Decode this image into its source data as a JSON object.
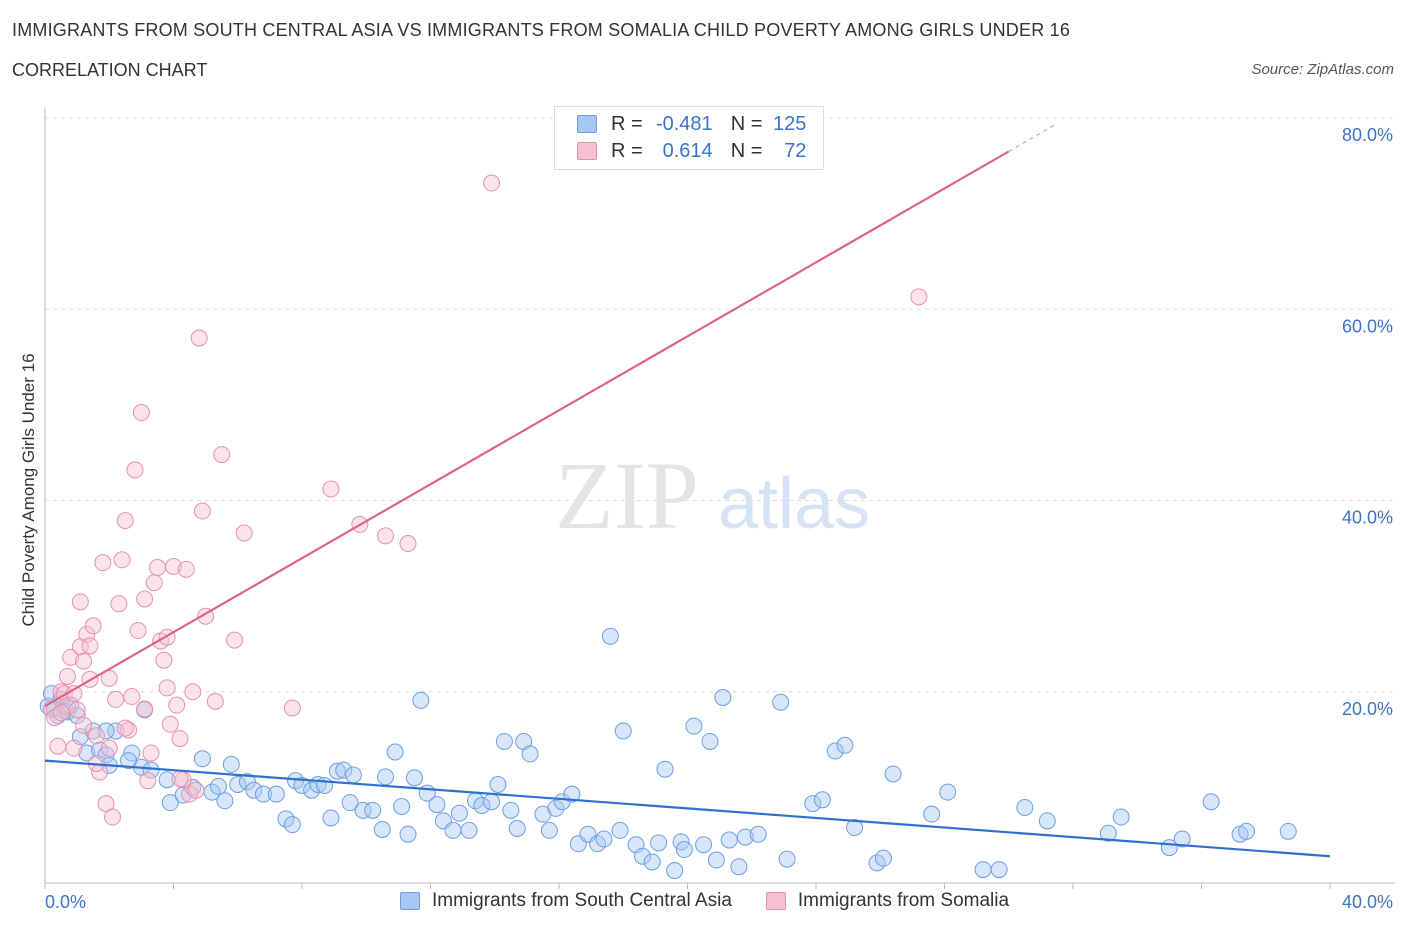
{
  "header": {
    "title": "IMMIGRANTS FROM SOUTH CENTRAL ASIA VS IMMIGRANTS FROM SOMALIA CHILD POVERTY AMONG GIRLS UNDER 16",
    "subtitle": "CORRELATION CHART",
    "source": "Source: ZipAtlas.com"
  },
  "legend": {
    "r_label": "R =",
    "n_label": "N =",
    "series1": {
      "r": "-0.481",
      "n": "125"
    },
    "series2": {
      "r": "0.614",
      "n": "72"
    }
  },
  "watermark": {
    "part1": "ZIP",
    "part2": "atlas"
  },
  "chart_data": {
    "type": "scatter",
    "title": "IMMIGRANTS FROM SOUTH CENTRAL ASIA VS IMMIGRANTS FROM SOMALIA CHILD POVERTY AMONG GIRLS UNDER 16",
    "ylabel": "Child Poverty Among Girls Under 16",
    "xlim": [
      0,
      40
    ],
    "ylim": [
      0,
      80
    ],
    "x_tick_labels": [
      "0.0%",
      "40.0%"
    ],
    "y_ticks": [
      20,
      40,
      60,
      80
    ],
    "y_tick_labels": [
      "20.0%",
      "40.0%",
      "60.0%",
      "80.0%"
    ],
    "grid": true,
    "legend_position": "top-center",
    "colors": {
      "series1": "#6d9fe0",
      "series2": "#e891ad",
      "trend1": "#2f6fd0",
      "trend2": "#e0628c",
      "axis_text": "#3b73c9"
    },
    "series": [
      {
        "name": "Immigrants from South Central Asia",
        "r": -0.481,
        "n": 125,
        "trend": {
          "x": [
            0,
            40
          ],
          "y": [
            12.8,
            2.8
          ]
        },
        "points": [
          [
            0.1,
            18.5
          ],
          [
            0.2,
            19.8
          ],
          [
            0.3,
            18.2
          ],
          [
            0.4,
            17.5
          ],
          [
            0.5,
            19.2
          ],
          [
            0.6,
            18.0
          ],
          [
            0.7,
            17.9
          ],
          [
            0.8,
            18.6
          ],
          [
            1.0,
            17.5
          ],
          [
            1.1,
            15.3
          ],
          [
            1.3,
            13.6
          ],
          [
            1.5,
            15.9
          ],
          [
            1.7,
            13.9
          ],
          [
            1.9,
            13.4
          ],
          [
            2.0,
            12.3
          ],
          [
            2.2,
            15.9
          ],
          [
            2.7,
            13.6
          ],
          [
            3.0,
            12.1
          ],
          [
            3.1,
            18.1
          ],
          [
            3.3,
            11.8
          ],
          [
            3.8,
            10.8
          ],
          [
            3.9,
            8.4
          ],
          [
            4.3,
            9.2
          ],
          [
            4.6,
            10.0
          ],
          [
            4.9,
            13.0
          ],
          [
            5.2,
            9.5
          ],
          [
            5.4,
            10.1
          ],
          [
            5.6,
            8.6
          ],
          [
            5.8,
            12.4
          ],
          [
            6.0,
            10.3
          ],
          [
            6.3,
            10.6
          ],
          [
            6.5,
            9.7
          ],
          [
            6.8,
            9.3
          ],
          [
            7.2,
            9.3
          ],
          [
            7.5,
            6.7
          ],
          [
            7.7,
            6.1
          ],
          [
            7.8,
            10.7
          ],
          [
            8.0,
            10.2
          ],
          [
            8.3,
            9.7
          ],
          [
            8.5,
            10.3
          ],
          [
            8.7,
            10.2
          ],
          [
            8.9,
            6.8
          ],
          [
            9.1,
            11.7
          ],
          [
            9.3,
            11.8
          ],
          [
            9.5,
            8.4
          ],
          [
            9.6,
            11.3
          ],
          [
            9.9,
            7.6
          ],
          [
            10.2,
            7.6
          ],
          [
            10.5,
            5.6
          ],
          [
            10.6,
            11.1
          ],
          [
            10.9,
            13.7
          ],
          [
            11.1,
            8.0
          ],
          [
            11.3,
            5.1
          ],
          [
            11.5,
            11.0
          ],
          [
            11.7,
            19.1
          ],
          [
            11.9,
            9.4
          ],
          [
            12.2,
            8.2
          ],
          [
            12.4,
            6.5
          ],
          [
            12.7,
            5.5
          ],
          [
            12.9,
            7.3
          ],
          [
            13.2,
            5.5
          ],
          [
            13.4,
            8.6
          ],
          [
            13.6,
            8.1
          ],
          [
            13.9,
            8.5
          ],
          [
            14.1,
            10.3
          ],
          [
            14.3,
            14.8
          ],
          [
            14.5,
            7.6
          ],
          [
            14.7,
            5.7
          ],
          [
            14.9,
            14.8
          ],
          [
            15.1,
            13.5
          ],
          [
            15.5,
            7.2
          ],
          [
            15.7,
            5.5
          ],
          [
            15.9,
            7.8
          ],
          [
            16.1,
            8.5
          ],
          [
            16.4,
            9.3
          ],
          [
            16.6,
            4.1
          ],
          [
            16.9,
            5.1
          ],
          [
            17.2,
            4.1
          ],
          [
            17.4,
            4.6
          ],
          [
            17.6,
            25.8
          ],
          [
            17.9,
            5.5
          ],
          [
            18.0,
            15.9
          ],
          [
            18.4,
            4.0
          ],
          [
            18.6,
            2.8
          ],
          [
            18.9,
            2.2
          ],
          [
            19.1,
            4.2
          ],
          [
            19.3,
            11.9
          ],
          [
            19.6,
            1.3
          ],
          [
            19.8,
            4.3
          ],
          [
            19.9,
            3.5
          ],
          [
            20.2,
            16.4
          ],
          [
            20.5,
            4.0
          ],
          [
            20.7,
            14.8
          ],
          [
            20.9,
            2.4
          ],
          [
            21.1,
            19.4
          ],
          [
            21.3,
            4.5
          ],
          [
            21.6,
            1.7
          ],
          [
            21.8,
            4.8
          ],
          [
            22.2,
            5.1
          ],
          [
            22.9,
            18.9
          ],
          [
            23.1,
            2.5
          ],
          [
            23.9,
            8.3
          ],
          [
            24.2,
            8.7
          ],
          [
            24.6,
            13.8
          ],
          [
            24.9,
            14.4
          ],
          [
            25.2,
            5.8
          ],
          [
            25.9,
            2.1
          ],
          [
            26.1,
            2.6
          ],
          [
            26.4,
            11.4
          ],
          [
            27.6,
            7.2
          ],
          [
            28.1,
            9.5
          ],
          [
            29.2,
            1.4
          ],
          [
            29.7,
            1.4
          ],
          [
            30.5,
            7.9
          ],
          [
            31.2,
            6.5
          ],
          [
            33.1,
            5.2
          ],
          [
            33.5,
            6.9
          ],
          [
            35.0,
            3.7
          ],
          [
            35.4,
            4.6
          ],
          [
            36.3,
            8.5
          ],
          [
            37.2,
            5.1
          ],
          [
            37.4,
            5.4
          ],
          [
            38.7,
            5.4
          ],
          [
            1.9,
            15.9
          ],
          [
            2.6,
            12.8
          ]
        ]
      },
      {
        "name": "Immigrants from Somalia",
        "r": 0.614,
        "n": 72,
        "trend": {
          "x": [
            0,
            30
          ],
          "y": [
            18.5,
            76.5
          ]
        },
        "points": [
          [
            0.2,
            18.2
          ],
          [
            0.3,
            17.3
          ],
          [
            0.4,
            14.3
          ],
          [
            0.5,
            20.0
          ],
          [
            0.6,
            19.8
          ],
          [
            0.7,
            21.6
          ],
          [
            0.7,
            18.5
          ],
          [
            0.8,
            23.6
          ],
          [
            0.9,
            14.1
          ],
          [
            1.0,
            18.1
          ],
          [
            1.1,
            24.7
          ],
          [
            1.1,
            29.4
          ],
          [
            1.2,
            23.2
          ],
          [
            1.3,
            26.0
          ],
          [
            1.4,
            24.8
          ],
          [
            1.5,
            26.9
          ],
          [
            1.6,
            15.4
          ],
          [
            1.7,
            11.6
          ],
          [
            1.8,
            33.5
          ],
          [
            1.9,
            8.3
          ],
          [
            2.0,
            21.4
          ],
          [
            2.1,
            6.9
          ],
          [
            2.2,
            19.2
          ],
          [
            2.3,
            29.2
          ],
          [
            2.4,
            33.8
          ],
          [
            2.5,
            37.9
          ],
          [
            2.6,
            16.0
          ],
          [
            2.7,
            19.5
          ],
          [
            2.8,
            43.2
          ],
          [
            2.9,
            26.4
          ],
          [
            3.0,
            49.2
          ],
          [
            3.1,
            29.7
          ],
          [
            3.2,
            10.7
          ],
          [
            3.3,
            13.6
          ],
          [
            3.4,
            31.4
          ],
          [
            3.5,
            33.0
          ],
          [
            3.6,
            25.3
          ],
          [
            3.7,
            23.3
          ],
          [
            3.8,
            25.7
          ],
          [
            3.9,
            16.6
          ],
          [
            4.0,
            33.1
          ],
          [
            4.1,
            18.6
          ],
          [
            4.2,
            15.1
          ],
          [
            4.3,
            10.8
          ],
          [
            4.4,
            32.8
          ],
          [
            4.5,
            9.3
          ],
          [
            4.6,
            20.0
          ],
          [
            4.7,
            9.7
          ],
          [
            4.8,
            57.0
          ],
          [
            4.9,
            38.9
          ],
          [
            5.0,
            27.9
          ],
          [
            5.3,
            19.0
          ],
          [
            5.5,
            44.8
          ],
          [
            5.9,
            25.4
          ],
          [
            6.2,
            36.6
          ],
          [
            7.7,
            18.3
          ],
          [
            8.9,
            41.2
          ],
          [
            9.8,
            37.5
          ],
          [
            10.6,
            36.3
          ],
          [
            11.3,
            35.5
          ],
          [
            13.9,
            73.2
          ],
          [
            27.2,
            61.3
          ],
          [
            0.5,
            17.8
          ],
          [
            0.9,
            19.8
          ],
          [
            1.4,
            21.3
          ],
          [
            1.6,
            12.5
          ],
          [
            2.0,
            14.1
          ],
          [
            3.1,
            18.2
          ],
          [
            3.8,
            20.4
          ],
          [
            4.2,
            10.9
          ],
          [
            1.2,
            16.5
          ],
          [
            2.5,
            16.2
          ]
        ]
      }
    ]
  }
}
